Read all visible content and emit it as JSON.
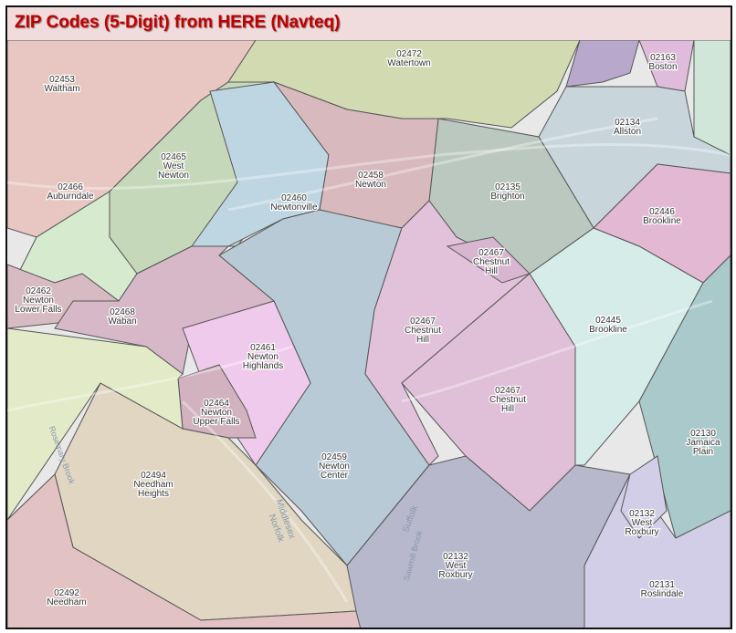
{
  "title": "ZIP Codes (5-Digit) from HERE (Navteq)",
  "zones": [
    {
      "zip": "02453",
      "name": "Waltham",
      "color": "#e8c6c2"
    },
    {
      "zip": "02472",
      "name": "Watertown",
      "color": "#d2dab2"
    },
    {
      "zip": "",
      "name": "",
      "color": "#b8a8cc"
    },
    {
      "zip": "02163",
      "name": "Boston",
      "color": "#e0bcdc"
    },
    {
      "zip": "",
      "name": "",
      "color": "#cfe6d8"
    },
    {
      "zip": "02134",
      "name": "Allston",
      "color": "#c8d6dc"
    },
    {
      "zip": "02135",
      "name": "Brighton",
      "color": "#bac8bf"
    },
    {
      "zip": "02446",
      "name": "Brookline",
      "color": "#e2b8d2"
    },
    {
      "zip": "02465",
      "name": "West Newton",
      "color": "#c6d8ba"
    },
    {
      "zip": "02466",
      "name": "Auburndale",
      "color": "#d6eace"
    },
    {
      "zip": "02460",
      "name": "Newtonville",
      "color": "#bed6e2"
    },
    {
      "zip": "02458",
      "name": "Newton",
      "color": "#d8babe"
    },
    {
      "zip": "02459",
      "name": "Newton Center",
      "color": "#b8cad6"
    },
    {
      "zip": "02467",
      "name": "Chestnut Hill",
      "color": "#e2c2da"
    },
    {
      "zip": "02467",
      "name": "Chestnut Hill",
      "color": "#d8b6d2"
    },
    {
      "zip": "02467",
      "name": "Chestnut Hill",
      "color": "#e0c0d8"
    },
    {
      "zip": "02445",
      "name": "Brookline",
      "color": "#d6ece8"
    },
    {
      "zip": "02130",
      "name": "Jamaica Plain",
      "color": "#a9c9ca"
    },
    {
      "zip": "02132",
      "name": "West Roxbury",
      "color": "#b8b8cc"
    },
    {
      "zip": "02131",
      "name": "Roslindale",
      "color": "#d2cee8"
    },
    {
      "zip": "02132",
      "name": "West Roxbury",
      "color": "#d2cee8"
    },
    {
      "zip": "02462",
      "name": "Newton Lower Falls",
      "color": "#d8bac2"
    },
    {
      "zip": "02468",
      "name": "Waban",
      "color": "#d6b8c8"
    },
    {
      "zip": "02461",
      "name": "Newton Highlands",
      "color": "#f0caec"
    },
    {
      "zip": "02464",
      "name": "Newton Upper Falls",
      "color": "#d2b2be"
    },
    {
      "zip": "02494",
      "name": "Needham Heights",
      "color": "#e0d6c2"
    },
    {
      "zip": "02492",
      "name": "Needham",
      "color": "#e2c2c2"
    },
    {
      "zip": "",
      "name": "",
      "color": "#e2eac8"
    }
  ],
  "map_text": {
    "middlesex": "Middlesex",
    "norfolk": "Norfolk",
    "suffolk": "Suffolk",
    "sawmill_brook": "Sawmill Brook",
    "rosemary_brook": "Rosemary Brook"
  }
}
